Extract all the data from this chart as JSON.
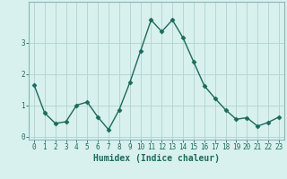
{
  "x": [
    0,
    1,
    2,
    3,
    4,
    5,
    6,
    7,
    8,
    9,
    10,
    11,
    12,
    13,
    14,
    15,
    16,
    17,
    18,
    19,
    20,
    21,
    22,
    23
  ],
  "y": [
    1.65,
    0.75,
    0.42,
    0.47,
    1.0,
    1.1,
    0.62,
    0.22,
    0.85,
    1.72,
    2.72,
    3.72,
    3.35,
    3.72,
    3.15,
    2.38,
    1.62,
    1.22,
    0.85,
    0.55,
    0.6,
    0.33,
    0.45,
    0.62
  ],
  "line_color": "#1a6b5a",
  "marker": "D",
  "markersize": 2.5,
  "linewidth": 1.0,
  "bg_color": "#d8f0ee",
  "grid_color": "#b0d4d0",
  "xlabel": "Humidex (Indice chaleur)",
  "xlim": [
    -0.5,
    23.5
  ],
  "ylim": [
    -0.1,
    4.3
  ],
  "yticks": [
    0,
    1,
    2,
    3
  ],
  "xticks": [
    0,
    1,
    2,
    3,
    4,
    5,
    6,
    7,
    8,
    9,
    10,
    11,
    12,
    13,
    14,
    15,
    16,
    17,
    18,
    19,
    20,
    21,
    22,
    23
  ],
  "xlabel_fontsize": 7.0,
  "tick_fontsize": 5.5
}
